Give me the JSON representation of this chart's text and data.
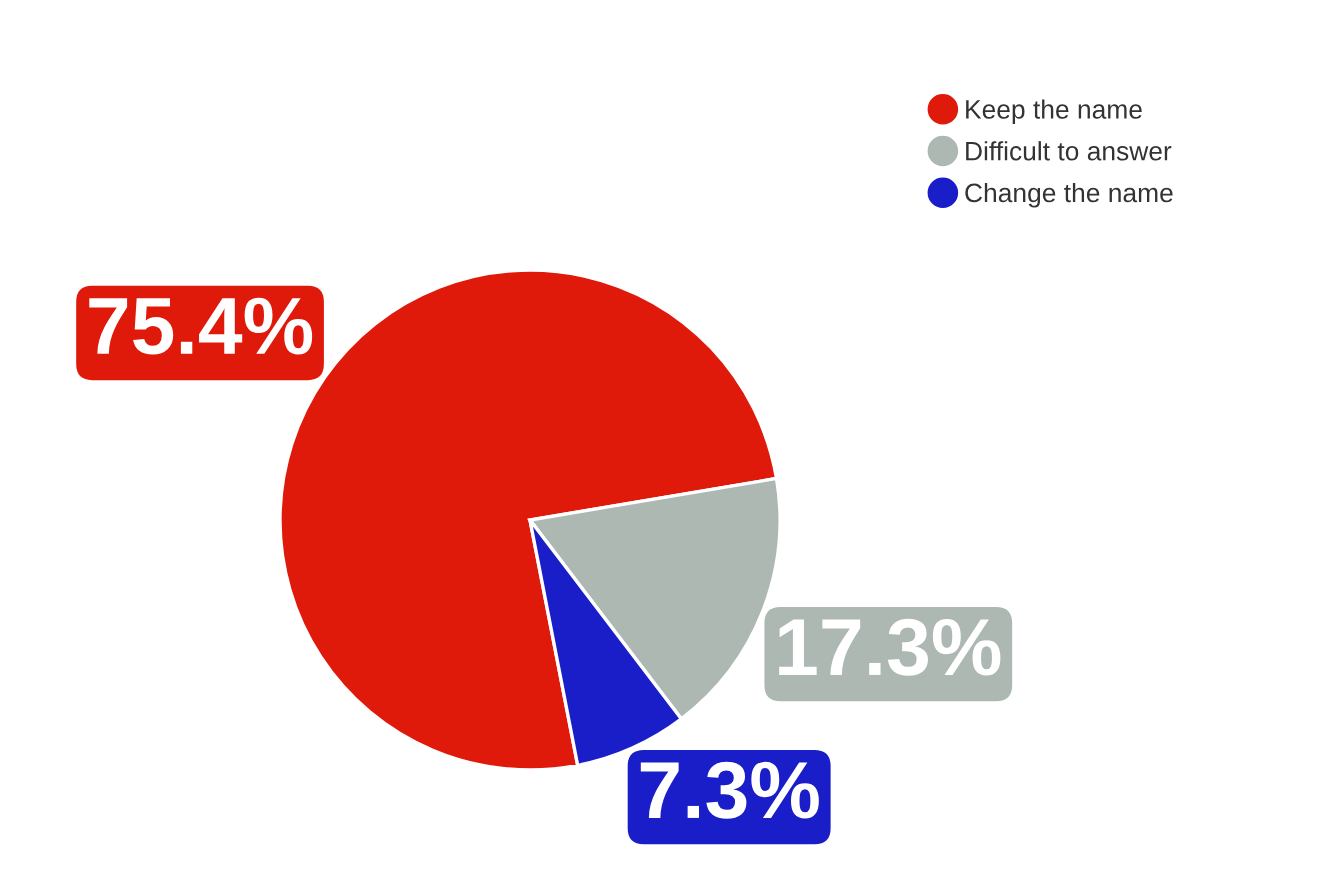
{
  "chart_data": {
    "type": "pie",
    "categories": [
      "Keep the name",
      "Difficult to answer",
      "Change the name"
    ],
    "values": [
      75.4,
      17.3,
      7.3
    ],
    "colors": [
      "#e01a0a",
      "#adb8b3",
      "#1a1ec8"
    ],
    "value_labels": [
      "75.4%",
      "17.3%",
      "7.3%"
    ],
    "legend": "top right"
  }
}
